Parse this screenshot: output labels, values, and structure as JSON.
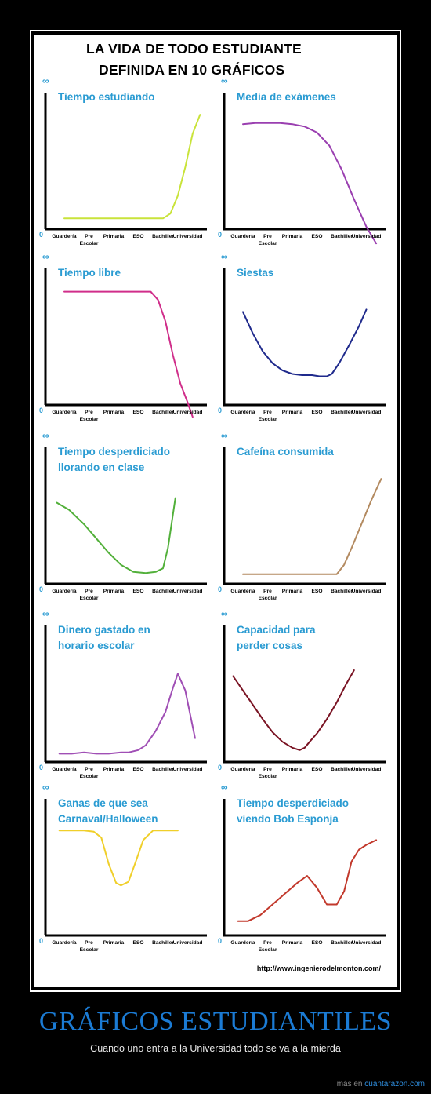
{
  "header": {
    "title_line1": "LA VIDA DE TODO ESTUDIANTE",
    "title_line2": "DEFINIDA EN 10 GRÁFICOS"
  },
  "axis": {
    "infinity": "∞",
    "zero": "0",
    "ticks": [
      "Guardería",
      "Pre",
      "Primaria",
      "ESO",
      "Bachiller",
      "Universidad"
    ],
    "tick_sub": "Escolar"
  },
  "chart_data": [
    {
      "type": "line",
      "title_lines": [
        "Tiempo estudiando"
      ],
      "color": "#c9e33a",
      "x": [
        0,
        0.5,
        1,
        1.5,
        2,
        2.5,
        3,
        3.5,
        4,
        4.3,
        4.6,
        4.9,
        5.2,
        5.5
      ],
      "y": [
        0.09,
        0.09,
        0.09,
        0.09,
        0.09,
        0.09,
        0.09,
        0.09,
        0.09,
        0.13,
        0.28,
        0.52,
        0.8,
        0.96
      ],
      "ylim": [
        0,
        1
      ],
      "xlim": [
        -0.9,
        5.7
      ]
    },
    {
      "type": "line",
      "title_lines": [
        "Media de exámenes"
      ],
      "color": "#9a3fb0",
      "x": [
        0,
        0.5,
        1,
        1.5,
        2,
        2.5,
        3,
        3.5,
        4,
        4.5,
        5,
        5.4
      ],
      "y": [
        0.88,
        0.89,
        0.89,
        0.89,
        0.88,
        0.86,
        0.81,
        0.7,
        0.5,
        0.25,
        0.02,
        -0.12
      ],
      "ylim": [
        0,
        1
      ],
      "xlim": [
        -0.9,
        5.7
      ]
    },
    {
      "type": "line",
      "title_lines": [
        "Tiempo libre"
      ],
      "color": "#d02e8a",
      "x": [
        0,
        0.5,
        1,
        1.5,
        2,
        2.5,
        3,
        3.5,
        3.8,
        4.1,
        4.4,
        4.7,
        5.0,
        5.2
      ],
      "y": [
        0.95,
        0.95,
        0.95,
        0.95,
        0.95,
        0.95,
        0.95,
        0.95,
        0.88,
        0.7,
        0.42,
        0.18,
        0.02,
        -0.1
      ],
      "ylim": [
        0,
        1
      ],
      "xlim": [
        -0.9,
        5.7
      ]
    },
    {
      "type": "line",
      "title_lines": [
        "Siestas"
      ],
      "color": "#1f2a8c",
      "x": [
        0,
        0.4,
        0.8,
        1.2,
        1.6,
        2,
        2.4,
        2.8,
        3.1,
        3.4,
        3.6,
        3.9,
        4.3,
        4.7,
        5.0
      ],
      "y": [
        0.78,
        0.6,
        0.45,
        0.35,
        0.29,
        0.26,
        0.25,
        0.25,
        0.24,
        0.24,
        0.26,
        0.35,
        0.5,
        0.66,
        0.8
      ],
      "ylim": [
        0,
        1
      ],
      "xlim": [
        -0.9,
        5.7
      ]
    },
    {
      "type": "line",
      "title_lines": [
        "Tiempo desperdiciado",
        "llorando en clase"
      ],
      "color": "#52b03a",
      "x": [
        -0.3,
        0.2,
        0.8,
        1.3,
        1.8,
        2.3,
        2.8,
        3.3,
        3.7,
        4.0,
        4.2,
        4.5
      ],
      "y": [
        0.68,
        0.62,
        0.5,
        0.38,
        0.26,
        0.16,
        0.1,
        0.09,
        0.1,
        0.13,
        0.3,
        0.72
      ],
      "ylim": [
        0,
        1
      ],
      "xlim": [
        -0.9,
        5.7
      ]
    },
    {
      "type": "line",
      "title_lines": [
        "Cafeína consumida"
      ],
      "color": "#b38a60",
      "x": [
        0,
        0.5,
        1,
        1.5,
        2,
        2.5,
        3,
        3.5,
        3.8,
        4.1,
        4.4,
        4.8,
        5.2,
        5.6
      ],
      "y": [
        0.08,
        0.08,
        0.08,
        0.08,
        0.08,
        0.08,
        0.08,
        0.08,
        0.08,
        0.16,
        0.3,
        0.5,
        0.7,
        0.88
      ],
      "ylim": [
        0,
        1
      ],
      "xlim": [
        -0.9,
        5.7
      ]
    },
    {
      "type": "line",
      "title_lines": [
        "Dinero gastado en",
        "horario escolar"
      ],
      "color": "#a04fb5",
      "x": [
        -0.2,
        0.3,
        0.8,
        1.3,
        1.8,
        2.3,
        2.6,
        3.0,
        3.3,
        3.7,
        4.1,
        4.4,
        4.6,
        4.9,
        5.3
      ],
      "y": [
        0.07,
        0.07,
        0.08,
        0.07,
        0.07,
        0.08,
        0.08,
        0.1,
        0.14,
        0.26,
        0.42,
        0.62,
        0.74,
        0.6,
        0.2
      ],
      "ylim": [
        0,
        1
      ],
      "xlim": [
        -0.9,
        5.7
      ]
    },
    {
      "type": "line",
      "title_lines": [
        "Capacidad para",
        "perder cosas"
      ],
      "color": "#7a1424",
      "x": [
        -0.4,
        0.0,
        0.4,
        0.8,
        1.2,
        1.6,
        2.0,
        2.3,
        2.5,
        2.7,
        3.0,
        3.4,
        3.8,
        4.2,
        4.5
      ],
      "y": [
        0.72,
        0.6,
        0.48,
        0.36,
        0.25,
        0.17,
        0.12,
        0.1,
        0.12,
        0.17,
        0.24,
        0.36,
        0.5,
        0.66,
        0.77
      ],
      "ylim": [
        0,
        1
      ],
      "xlim": [
        -0.9,
        5.7
      ]
    },
    {
      "type": "line",
      "title_lines": [
        "Ganas de que sea",
        "Carnaval/Halloween"
      ],
      "color": "#f0cf2a",
      "x": [
        -0.2,
        0.3,
        0.8,
        1.2,
        1.5,
        1.8,
        2.1,
        2.3,
        2.6,
        2.9,
        3.2,
        3.6,
        4.1,
        4.6
      ],
      "y": [
        0.88,
        0.88,
        0.88,
        0.87,
        0.82,
        0.6,
        0.44,
        0.42,
        0.45,
        0.62,
        0.8,
        0.88,
        0.88,
        0.88
      ],
      "ylim": [
        0,
        1
      ],
      "xlim": [
        -0.9,
        5.7
      ]
    },
    {
      "type": "line",
      "title_lines": [
        "Tiempo desperdiciado",
        "viendo Bob Esponja"
      ],
      "color": "#c2392c",
      "x": [
        -0.2,
        0.2,
        0.7,
        1.2,
        1.7,
        2.2,
        2.6,
        3.0,
        3.4,
        3.8,
        4.1,
        4.4,
        4.7,
        5.0,
        5.4
      ],
      "y": [
        0.12,
        0.12,
        0.17,
        0.26,
        0.35,
        0.44,
        0.5,
        0.4,
        0.26,
        0.26,
        0.37,
        0.62,
        0.72,
        0.76,
        0.8
      ],
      "ylim": [
        0,
        1
      ],
      "xlim": [
        -0.9,
        5.7
      ]
    }
  ],
  "footer": {
    "url": "http://www.ingenierodelmonton.com/"
  },
  "page": {
    "main_title": "GRÁFICOS ESTUDIANTILES",
    "subtitle": "Cuando uno entra a la Universidad todo se va a la mierda",
    "credit_prefix": "más en",
    "credit_link": "cuantarazon.com"
  }
}
